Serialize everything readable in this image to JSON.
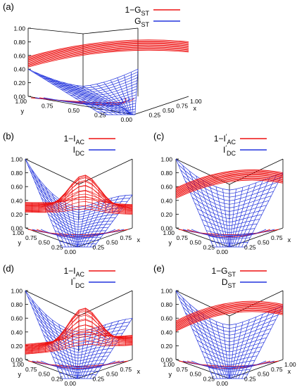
{
  "colors": {
    "red": "#ee1111",
    "blue": "#2233dd",
    "axis": "#000000"
  },
  "chart_data": [
    {
      "type": "surface3d",
      "panel_label": "(a)",
      "legend": [
        {
          "main": "1−G",
          "sub": "ST",
          "sup": "",
          "color": "red"
        },
        {
          "main": "G",
          "sub": "ST",
          "sup": "",
          "color": "blue"
        }
      ],
      "zlim": [
        0,
        1
      ],
      "xlim": [
        0,
        1
      ],
      "ylim": [
        0,
        1
      ],
      "z_ticks": [
        "0.00",
        "0.20",
        "0.40",
        "0.60",
        "0.80",
        "1.00"
      ],
      "x_ticks": [
        "0.25",
        "0.50",
        "0.75",
        "1.00"
      ],
      "y_ticks": [
        "0.00",
        "0.25",
        "0.50",
        "0.75",
        "1.00"
      ],
      "xlabel": "x",
      "ylabel": "y",
      "surfaces": [
        {
          "color": "red",
          "shape": "band",
          "z_left": 0.58,
          "z_center": 0.8,
          "z_right": 0.8,
          "z_far": 0.76
        },
        {
          "color": "blue",
          "shape": "bowl",
          "z_left": 0.4,
          "z_right": 0.4,
          "z_near": 0.0,
          "z_center": 0.15,
          "z_far": 0.4
        }
      ]
    },
    {
      "type": "surface3d",
      "panel_label": "(b)",
      "legend": [
        {
          "main": "1−I",
          "sub": "AC",
          "sup": "",
          "color": "red"
        },
        {
          "main": "I",
          "sub": "DC",
          "sup": "",
          "color": "blue"
        }
      ],
      "zlim": [
        0,
        1
      ],
      "z_ticks": [
        "0.00",
        "0.20",
        "0.40",
        "0.60",
        "0.80",
        "1.00"
      ],
      "x_ticks": [
        "0.25",
        "0.50",
        "0.75"
      ],
      "y_ticks": [
        "0.00",
        "0.25",
        "0.50",
        "0.75",
        "1.00"
      ],
      "xlabel": "x",
      "ylabel": "y",
      "surfaces": [
        {
          "color": "blue",
          "shape": "bowl",
          "z_left": 1.0,
          "z_right": 0.48,
          "z_near": 0.0,
          "z_center": 0.3,
          "z_far": 0.48
        },
        {
          "color": "red",
          "shape": "dome",
          "z_left": 0.3,
          "z_right": 0.27,
          "z_peak": 0.77
        }
      ]
    },
    {
      "type": "surface3d",
      "panel_label": "(c)",
      "legend": [
        {
          "main": "1−I",
          "sub": "AC",
          "sup": "′",
          "color": "red"
        },
        {
          "main": "I",
          "sub": "DC",
          "sup": "′",
          "color": "blue"
        }
      ],
      "zlim": [
        0,
        1
      ],
      "z_ticks": [
        "0.00",
        "0.20",
        "0.40",
        "0.60",
        "0.80",
        "1.00"
      ],
      "x_ticks": [
        "0.25",
        "0.50",
        "0.75"
      ],
      "y_ticks": [
        "0.00",
        "0.25",
        "0.50",
        "0.75",
        "1.00"
      ],
      "xlabel": "x",
      "ylabel": "y",
      "surfaces": [
        {
          "color": "blue",
          "shape": "bowl",
          "z_left": 1.0,
          "z_right": 0.8,
          "z_near": 0.0,
          "z_center": 0.55,
          "z_far": 0.8
        },
        {
          "color": "red",
          "shape": "band",
          "z_left": 0.58,
          "z_center": 0.82,
          "z_right": 0.8,
          "z_far": 0.78
        }
      ]
    },
    {
      "type": "surface3d",
      "panel_label": "(d)",
      "legend": [
        {
          "main": "1−I",
          "sub": "AC",
          "sup": "",
          "color": "red"
        },
        {
          "main": "I",
          "sub": "DC",
          "sup": "″",
          "color": "blue"
        }
      ],
      "zlim": [
        0,
        1
      ],
      "z_ticks": [
        "0.00",
        "0.20",
        "0.40",
        "0.60",
        "0.80",
        "1.00"
      ],
      "x_ticks": [
        "0.25",
        "0.50",
        "0.75"
      ],
      "y_ticks": [
        "0.00",
        "0.25",
        "0.50",
        "0.75",
        "1.00"
      ],
      "xlabel": "x",
      "ylabel": "y",
      "surfaces": [
        {
          "color": "blue",
          "shape": "bowl",
          "z_left": 1.0,
          "z_right": 0.6,
          "z_near": 0.0,
          "z_center": 0.4,
          "z_far": 0.6
        },
        {
          "color": "red",
          "shape": "dome",
          "z_left": 0.15,
          "z_right": 0.28,
          "z_peak": 0.75
        }
      ]
    },
    {
      "type": "surface3d",
      "panel_label": "(e)",
      "legend": [
        {
          "main": "1−G",
          "sub": "ST",
          "sup": "",
          "color": "red"
        },
        {
          "main": "D",
          "sub": "ST",
          "sup": "",
          "color": "blue"
        }
      ],
      "zlim": [
        0,
        1
      ],
      "z_ticks": [
        "0.00",
        "0.20",
        "0.40",
        "0.60",
        "0.80",
        "1.00"
      ],
      "x_ticks": [
        "0.25",
        "0.50",
        "0.75",
        "1.00"
      ],
      "y_ticks": [
        "0.00",
        "0.25",
        "0.50",
        "0.75",
        "1.00"
      ],
      "xlabel": "x",
      "ylabel": "y",
      "surfaces": [
        {
          "color": "blue",
          "shape": "bowl",
          "z_left": 1.0,
          "z_right": 0.78,
          "z_near": 0.0,
          "z_center": 0.5,
          "z_far": 0.78
        },
        {
          "color": "red",
          "shape": "band",
          "z_left": 0.56,
          "z_center": 0.82,
          "z_right": 0.8,
          "z_far": 0.78
        }
      ]
    }
  ]
}
